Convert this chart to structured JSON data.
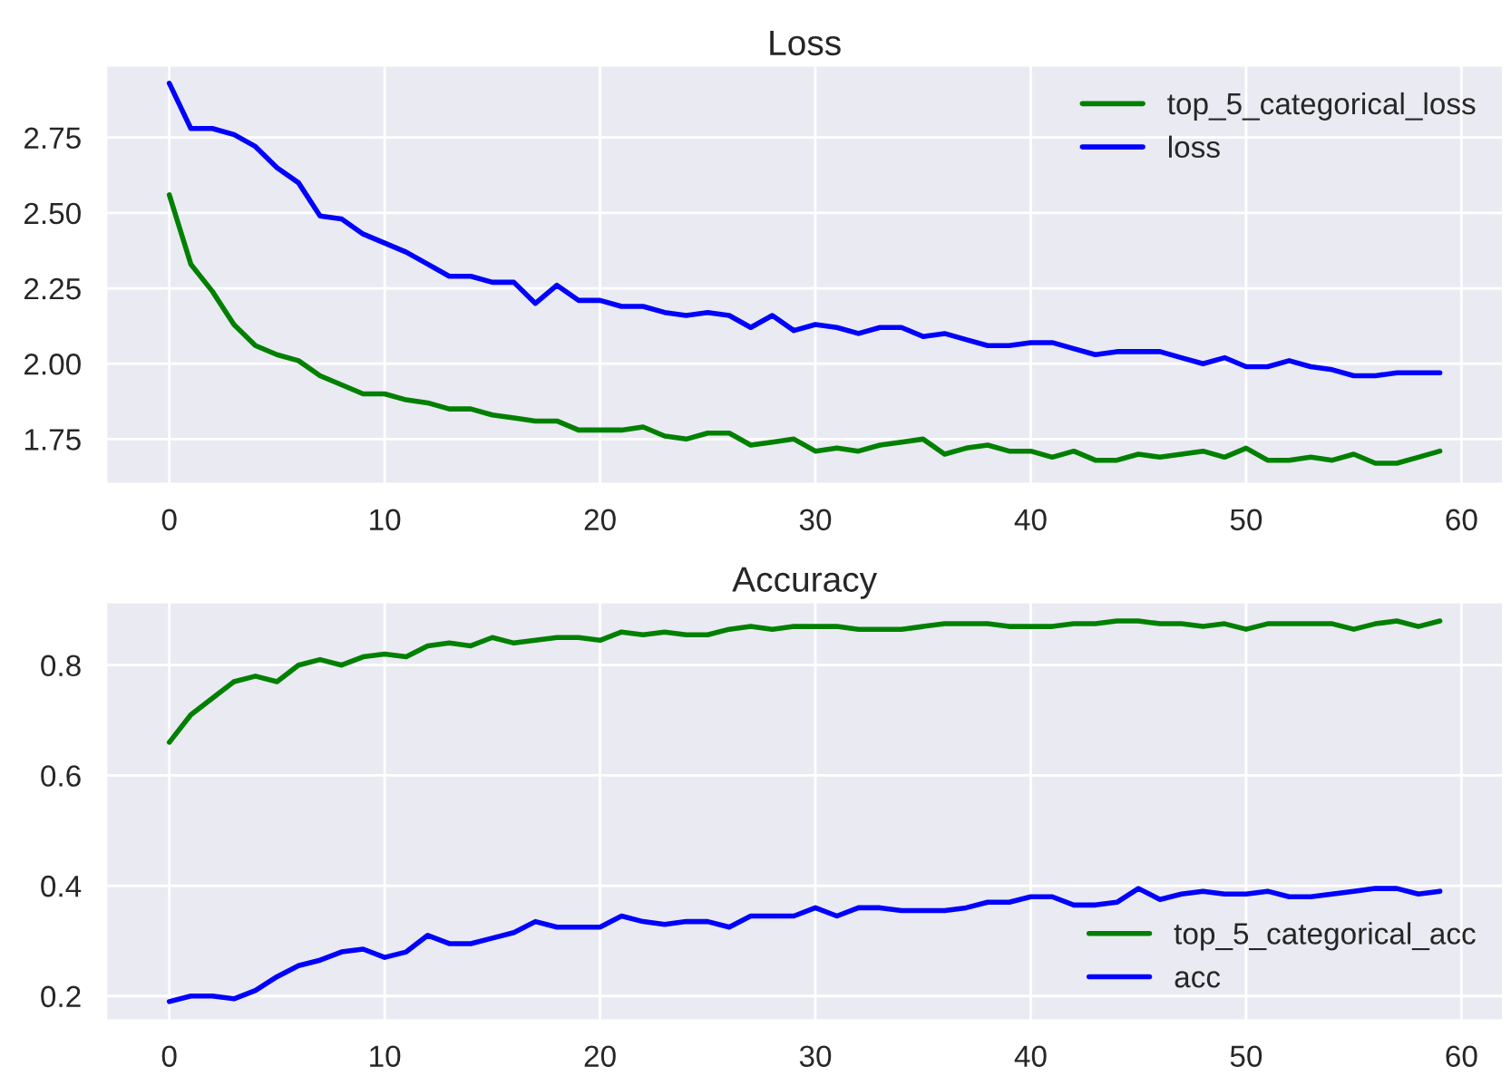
{
  "chart_data": [
    {
      "type": "line",
      "title": "Loss",
      "x": [
        0,
        1,
        2,
        3,
        4,
        5,
        6,
        7,
        8,
        9,
        10,
        11,
        12,
        13,
        14,
        15,
        16,
        17,
        18,
        19,
        20,
        21,
        22,
        23,
        24,
        25,
        26,
        27,
        28,
        29,
        30,
        31,
        32,
        33,
        34,
        35,
        36,
        37,
        38,
        39,
        40,
        41,
        42,
        43,
        44,
        45,
        46,
        47,
        48,
        49,
        50,
        51,
        52,
        53,
        54,
        55,
        56,
        57,
        58,
        59
      ],
      "series": [
        {
          "name": "top_5_categorical_loss",
          "color": "#008000",
          "values": [
            2.56,
            2.33,
            2.24,
            2.13,
            2.06,
            2.03,
            2.01,
            1.96,
            1.93,
            1.9,
            1.9,
            1.88,
            1.87,
            1.85,
            1.85,
            1.83,
            1.82,
            1.81,
            1.81,
            1.78,
            1.78,
            1.78,
            1.79,
            1.76,
            1.75,
            1.77,
            1.77,
            1.73,
            1.74,
            1.75,
            1.71,
            1.72,
            1.71,
            1.73,
            1.74,
            1.75,
            1.7,
            1.72,
            1.73,
            1.71,
            1.71,
            1.69,
            1.71,
            1.68,
            1.68,
            1.7,
            1.69,
            1.7,
            1.71,
            1.69,
            1.72,
            1.68,
            1.68,
            1.69,
            1.68,
            1.7,
            1.67,
            1.67,
            1.69,
            1.71
          ]
        },
        {
          "name": "loss",
          "color": "#0000ff",
          "values": [
            2.93,
            2.78,
            2.78,
            2.76,
            2.72,
            2.65,
            2.6,
            2.49,
            2.48,
            2.43,
            2.4,
            2.37,
            2.33,
            2.29,
            2.29,
            2.27,
            2.27,
            2.2,
            2.26,
            2.21,
            2.21,
            2.19,
            2.19,
            2.17,
            2.16,
            2.17,
            2.16,
            2.12,
            2.16,
            2.11,
            2.13,
            2.12,
            2.1,
            2.12,
            2.12,
            2.09,
            2.1,
            2.08,
            2.06,
            2.06,
            2.07,
            2.07,
            2.05,
            2.03,
            2.04,
            2.04,
            2.04,
            2.02,
            2.0,
            2.02,
            1.99,
            1.99,
            2.01,
            1.99,
            1.98,
            1.96,
            1.96,
            1.97,
            1.97,
            1.97
          ]
        }
      ],
      "xlim": [
        -2.95,
        61.95
      ],
      "xticks": [
        0,
        10,
        20,
        30,
        40,
        50,
        60
      ],
      "ylim": [
        1.6,
        2.99
      ],
      "yticks": [
        {
          "value": 1.75,
          "label": "1.75"
        },
        {
          "value": 2.0,
          "label": "2.00"
        },
        {
          "value": 2.25,
          "label": "2.25"
        },
        {
          "value": 2.5,
          "label": "2.50"
        },
        {
          "value": 2.75,
          "label": "2.75"
        }
      ],
      "grid": true,
      "legend": "top right"
    },
    {
      "type": "line",
      "title": "Accuracy",
      "x": [
        0,
        1,
        2,
        3,
        4,
        5,
        6,
        7,
        8,
        9,
        10,
        11,
        12,
        13,
        14,
        15,
        16,
        17,
        18,
        19,
        20,
        21,
        22,
        23,
        24,
        25,
        26,
        27,
        28,
        29,
        30,
        31,
        32,
        33,
        34,
        35,
        36,
        37,
        38,
        39,
        40,
        41,
        42,
        43,
        44,
        45,
        46,
        47,
        48,
        49,
        50,
        51,
        52,
        53,
        54,
        55,
        56,
        57,
        58,
        59
      ],
      "series": [
        {
          "name": "top_5_categorical_acc",
          "color": "#008000",
          "values": [
            0.66,
            0.71,
            0.74,
            0.77,
            0.78,
            0.77,
            0.8,
            0.81,
            0.8,
            0.815,
            0.82,
            0.815,
            0.835,
            0.84,
            0.835,
            0.85,
            0.84,
            0.845,
            0.85,
            0.85,
            0.845,
            0.86,
            0.855,
            0.86,
            0.855,
            0.855,
            0.865,
            0.87,
            0.865,
            0.87,
            0.87,
            0.87,
            0.865,
            0.865,
            0.865,
            0.87,
            0.875,
            0.875,
            0.875,
            0.87,
            0.87,
            0.87,
            0.875,
            0.875,
            0.88,
            0.88,
            0.875,
            0.875,
            0.87,
            0.875,
            0.865,
            0.875,
            0.875,
            0.875,
            0.875,
            0.865,
            0.875,
            0.88,
            0.87,
            0.88
          ]
        },
        {
          "name": "acc",
          "color": "#0000ff",
          "values": [
            0.19,
            0.2,
            0.2,
            0.195,
            0.21,
            0.235,
            0.255,
            0.265,
            0.28,
            0.285,
            0.27,
            0.28,
            0.31,
            0.295,
            0.295,
            0.305,
            0.315,
            0.335,
            0.325,
            0.325,
            0.325,
            0.345,
            0.335,
            0.33,
            0.335,
            0.335,
            0.325,
            0.345,
            0.345,
            0.345,
            0.36,
            0.345,
            0.36,
            0.36,
            0.355,
            0.355,
            0.355,
            0.36,
            0.37,
            0.37,
            0.38,
            0.38,
            0.365,
            0.365,
            0.37,
            0.395,
            0.375,
            0.385,
            0.39,
            0.385,
            0.385,
            0.39,
            0.38,
            0.38,
            0.385,
            0.39,
            0.395,
            0.395,
            0.385,
            0.39
          ]
        }
      ],
      "xlim": [
        -2.95,
        61.95
      ],
      "xticks": [
        0,
        10,
        20,
        30,
        40,
        50,
        60
      ],
      "ylim": [
        0.155,
        0.915
      ],
      "yticks": [
        0.2,
        0.4,
        0.6,
        0.8
      ],
      "grid": true,
      "legend": "bottom right"
    }
  ]
}
